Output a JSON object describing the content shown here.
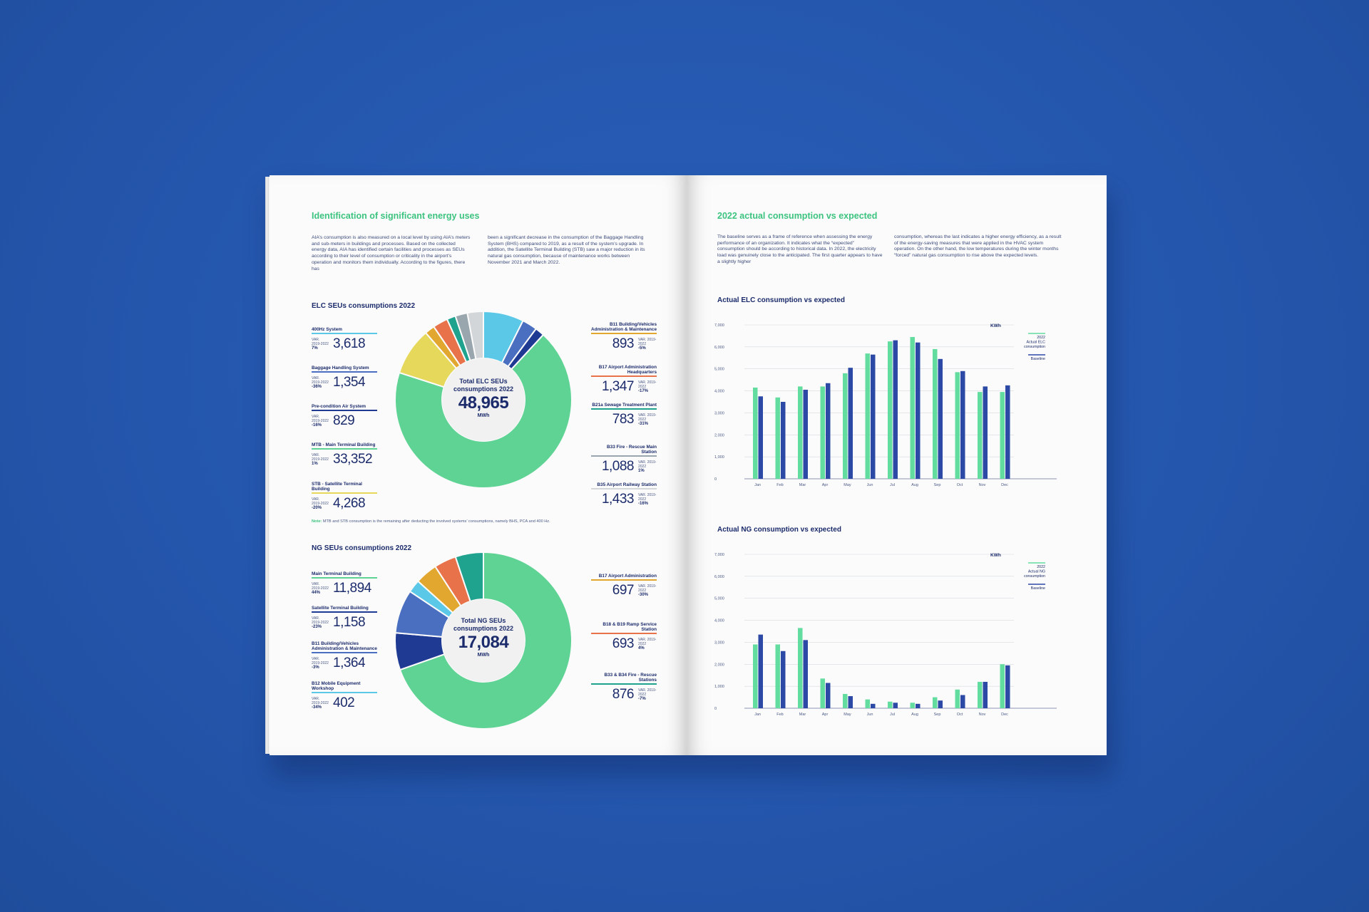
{
  "left_page": {
    "title": "Identification of significant energy uses",
    "intro_col1": "AIA’s consumption is also measured on a local level by using AIA’s meters and sub-meters in buildings and processes. Based on the collected energy data, AIA has identified certain facilities and processes as SEUs according to their level of consumption or criticality in the airport’s operation and monitors them individually. According to the figures, there has",
    "intro_col2": "been a significant decrease in the consumption of the Baggage Handling System (BHS) compared to 2019, as a result of the system’s upgrade. In addition, the Satellite Terminal Building (STB) saw a major reduction in its natural gas consumption, because of maintenance works between November 2021 and March 2022.",
    "elc_section_title": "ELC SEUs consumptions 2022",
    "elc_center": {
      "title": "Total ELC SEUs consumptions 2022",
      "value": "48,965",
      "unit": "MWh"
    },
    "var_label": "VAR. 2019-2022",
    "elc_left_stats": [
      {
        "label": "400Hz System",
        "pct": "7%",
        "value": "3,618",
        "color": "#5bc8e8"
      },
      {
        "label": "Baggage Handling System",
        "pct": "-36%",
        "value": "1,354",
        "color": "#4a6fc0"
      },
      {
        "label": "Pre-condition Air System",
        "pct": "-16%",
        "value": "829",
        "color": "#1f3a93"
      },
      {
        "label": "MTB - Main Terminal Building",
        "pct": "1%",
        "value": "33,352",
        "color": "#5ed394"
      },
      {
        "label": "STB - Satellite Terminal Building",
        "pct": "-20%",
        "value": "4,268",
        "color": "#e6d85a"
      }
    ],
    "elc_right_stats": [
      {
        "label": "B11 Building/Vehicles Administration & Maintenance",
        "pct": "-5%",
        "value": "893",
        "color": "#e2a72e"
      },
      {
        "label": "B17 Airport Administration Headquarters",
        "pct": "-17%",
        "value": "1,347",
        "color": "#e8734a"
      },
      {
        "label": "B21a Sewage Treatment Plant",
        "pct": "-31%",
        "value": "783",
        "color": "#1fa38f"
      },
      {
        "label": "B33 Fire - Rescue Main Station",
        "pct": "1%",
        "value": "1,088",
        "color": "#9aa6ad"
      },
      {
        "label": "B35 Airport Railway Station",
        "pct": "-16%",
        "value": "1,433",
        "color": "#d3d6d9"
      }
    ],
    "note_label": "Note:",
    "note_text": "MTB and STB consumption is the remaining after deducting the involved systems’ consumptions, namely BHS, PCA and 400 Hz.",
    "ng_section_title": "NG SEUs consumptions 2022",
    "ng_center": {
      "title": "Total NG SEUs consumptions 2022",
      "value": "17,084",
      "unit": "MWh"
    },
    "ng_left_stats": [
      {
        "label": "Main Terminal Building",
        "pct": "44%",
        "value": "11,894",
        "color": "#5ed394"
      },
      {
        "label": "Satellite Terminal Building",
        "pct": "-23%",
        "value": "1,158",
        "color": "#1f3a93"
      },
      {
        "label": "B11 Building/Vehicles Administration & Maintenance",
        "pct": "-3%",
        "value": "1,364",
        "color": "#4a6fc0"
      },
      {
        "label": "B12 Mobile Equipment Workshop",
        "pct": "-34%",
        "value": "402",
        "color": "#5bc8e8"
      }
    ],
    "ng_right_stats": [
      {
        "label": "B17 Airport Administration",
        "pct": "-30%",
        "value": "697",
        "color": "#e2a72e"
      },
      {
        "label": "B18 & B19 Ramp Service Station",
        "pct": "4%",
        "value": "693",
        "color": "#e8734a"
      },
      {
        "label": "B33 & B34 Fire - Rescue Stations",
        "pct": "-7%",
        "value": "876",
        "color": "#1fa38f"
      }
    ]
  },
  "right_page": {
    "title": "2022 actual consumption vs expected",
    "intro_col1": "The baseline serves as a frame of reference when assessing the energy performance of an organization. It indicates what the “expected” consumption should be according to historical data. In 2022, the electricity load was genuinely close to the anticipated. The first quarter appears to have a slightly higher",
    "intro_col2": "consumption, whereas the last indicates a higher energy efficiency, as a result of the energy-saving measures that were applied in the HVAC system operation. On the other hand, the low temperatures during the winter months “forced” natural gas consumption to rise above the expected levels."
  },
  "colors": {
    "accent_green": "#3cc37f",
    "navy": "#1b2b6b",
    "bar_actual": "#63dca0",
    "bar_baseline": "#2d49a6"
  },
  "chart_data": [
    {
      "type": "bar",
      "title": "Actual ELC consumption vs expected",
      "unit": "KWh",
      "categories": [
        "Jan",
        "Feb",
        "Mar",
        "Apr",
        "May",
        "Jun",
        "Jul",
        "Aug",
        "Sep",
        "Oct",
        "Nov",
        "Dec"
      ],
      "ylim": [
        0,
        7000
      ],
      "yticks": [
        "0",
        "1,000",
        "2,000",
        "3,000",
        "4,000",
        "5,000",
        "6,000",
        "7,000"
      ],
      "series": [
        {
          "name": "2022 Actual ELC consumption",
          "values": [
            4150,
            3700,
            4200,
            4200,
            4800,
            5700,
            6250,
            6450,
            5900,
            4850,
            3950,
            3950
          ]
        },
        {
          "name": "Baseline",
          "values": [
            3750,
            3500,
            4050,
            4350,
            5050,
            5650,
            6300,
            6200,
            5450,
            4900,
            4200,
            4250
          ]
        }
      ],
      "grid": true,
      "legend": "top-right"
    },
    {
      "type": "bar",
      "title": "Actual NG consumption vs expected",
      "unit": "KWh",
      "categories": [
        "Jan",
        "Feb",
        "Mar",
        "Apr",
        "May",
        "Jun",
        "Jul",
        "Aug",
        "Sep",
        "Oct",
        "Nov",
        "Dec"
      ],
      "ylim": [
        0,
        7000
      ],
      "yticks": [
        "0",
        "1,000",
        "2,000",
        "3,000",
        "4,000",
        "5,000",
        "6,000",
        "7,000"
      ],
      "series": [
        {
          "name": "2022 Actual NG consumption",
          "values": [
            2900,
            2900,
            3650,
            1350,
            650,
            400,
            300,
            250,
            500,
            850,
            1200,
            2000
          ]
        },
        {
          "name": "Baseline",
          "values": [
            3350,
            2600,
            3100,
            1150,
            550,
            200,
            250,
            200,
            350,
            600,
            1200,
            1950
          ]
        }
      ],
      "grid": true,
      "legend": "top-right"
    }
  ]
}
